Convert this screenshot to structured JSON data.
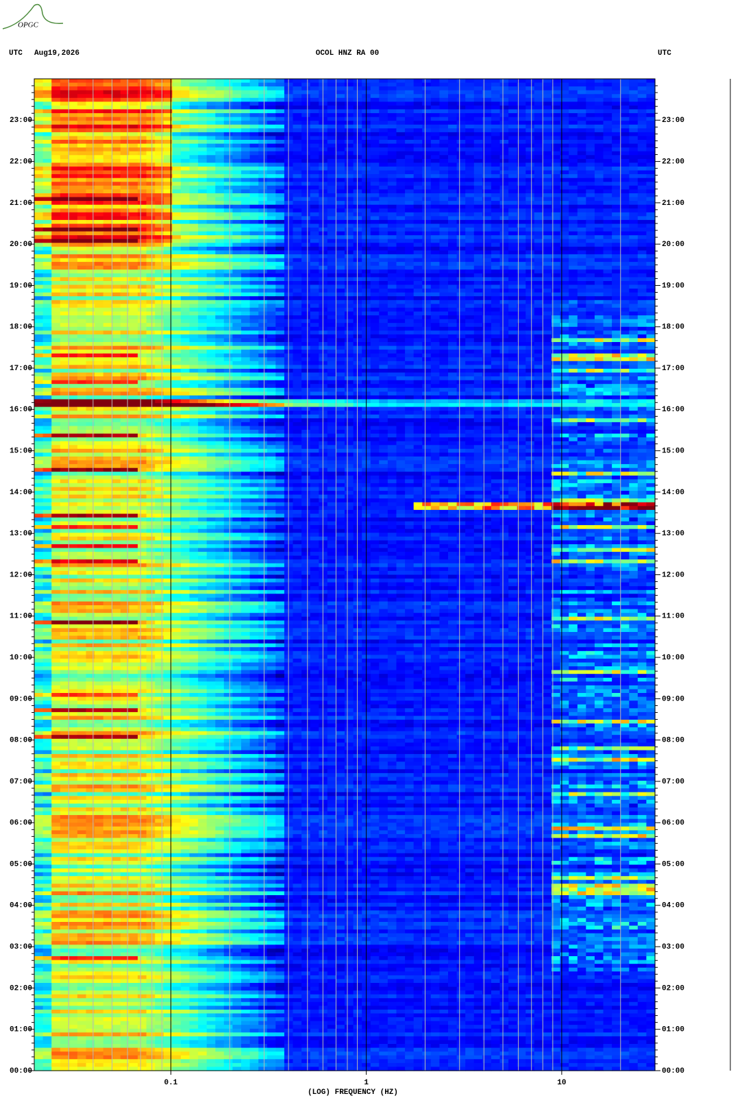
{
  "logo": "OPGC",
  "chart_data": {
    "type": "spectrogram",
    "title": "OCOL HNZ RA 00",
    "date": "Aug19,2026",
    "time_zone": "UTC",
    "xlabel": "(LOG) FREQUENCY (HZ)",
    "xscale": "log",
    "xlim": [
      0.02,
      30
    ],
    "xticks": [
      0.1,
      1,
      10
    ],
    "xminor_ticks": [
      0.03,
      0.04,
      0.05,
      0.06,
      0.07,
      0.08,
      0.09,
      0.2,
      0.3,
      0.4,
      0.5,
      0.6,
      0.7,
      0.8,
      0.9,
      2,
      3,
      4,
      5,
      6,
      7,
      8,
      9,
      20
    ],
    "ylim": [
      0,
      24
    ],
    "yticks": [
      {
        "value": 0,
        "label": "00:00"
      },
      {
        "value": 1,
        "label": "01:00"
      },
      {
        "value": 2,
        "label": "02:00"
      },
      {
        "value": 3,
        "label": "03:00"
      },
      {
        "value": 4,
        "label": "04:00"
      },
      {
        "value": 5,
        "label": "05:00"
      },
      {
        "value": 6,
        "label": "06:00"
      },
      {
        "value": 7,
        "label": "07:00"
      },
      {
        "value": 8,
        "label": "08:00"
      },
      {
        "value": 9,
        "label": "09:00"
      },
      {
        "value": 10,
        "label": "10:00"
      },
      {
        "value": 11,
        "label": "11:00"
      },
      {
        "value": 12,
        "label": "12:00"
      },
      {
        "value": 13,
        "label": "13:00"
      },
      {
        "value": 14,
        "label": "14:00"
      },
      {
        "value": 15,
        "label": "15:00"
      },
      {
        "value": 16,
        "label": "16:00"
      },
      {
        "value": 17,
        "label": "17:00"
      },
      {
        "value": 18,
        "label": "18:00"
      },
      {
        "value": 19,
        "label": "19:00"
      },
      {
        "value": 20,
        "label": "20:00"
      },
      {
        "value": 21,
        "label": "21:00"
      },
      {
        "value": 22,
        "label": "22:00"
      },
      {
        "value": 23,
        "label": "23:00"
      }
    ]
  }
}
